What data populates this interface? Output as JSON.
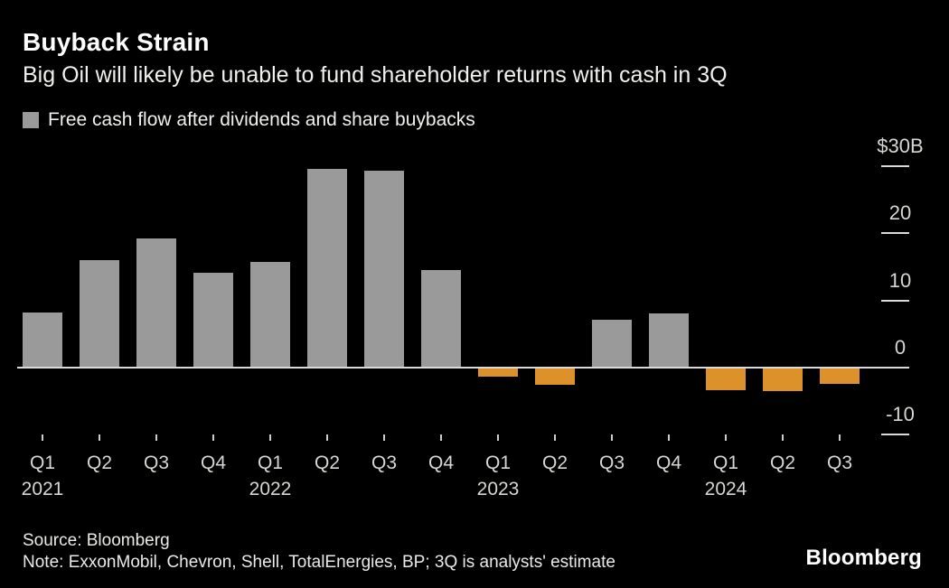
{
  "header": {
    "title": "Buyback Strain",
    "subtitle": "Big Oil will likely be unable to fund shareholder returns with cash in 3Q"
  },
  "legend": {
    "label": "Free cash flow after dividends and share buybacks",
    "swatch_color": "#9a9a9a"
  },
  "chart_data": {
    "type": "bar",
    "title": "Buyback Strain",
    "subtitle": "Big Oil will likely be unable to fund shareholder returns with cash in 3Q",
    "series_label": "Free cash flow after dividends and share buybacks",
    "unit": "billions USD",
    "categories": [
      "Q1 2021",
      "Q2 2021",
      "Q3 2021",
      "Q4 2021",
      "Q1 2022",
      "Q2 2022",
      "Q3 2022",
      "Q4 2022",
      "Q1 2023",
      "Q2 2023",
      "Q3 2023",
      "Q4 2023",
      "Q1 2024",
      "Q2 2024",
      "Q3 2024"
    ],
    "values": [
      8.2,
      16.0,
      19.2,
      14.1,
      15.8,
      29.6,
      29.4,
      14.6,
      -1.3,
      -2.6,
      7.1,
      8.1,
      -3.3,
      -3.5,
      -2.4
    ],
    "ylim": [
      -13,
      33
    ],
    "grid": false,
    "legend_position": "top-left",
    "y_axis": {
      "side": "right",
      "ticks": [
        {
          "label": "$30B",
          "value": 30
        },
        {
          "label": "20",
          "value": 20
        },
        {
          "label": "10",
          "value": 10
        },
        {
          "label": "0",
          "value": 0
        },
        {
          "label": "-10",
          "value": -10
        }
      ]
    },
    "x_axis": {
      "quarter_labels": [
        "Q1",
        "Q2",
        "Q3",
        "Q4",
        "Q1",
        "Q2",
        "Q3",
        "Q4",
        "Q1",
        "Q2",
        "Q3",
        "Q4",
        "Q1",
        "Q2",
        "Q3"
      ],
      "year_labels": [
        {
          "label": "2021",
          "index": 0
        },
        {
          "label": "2022",
          "index": 4
        },
        {
          "label": "2023",
          "index": 8
        },
        {
          "label": "2024",
          "index": 12
        }
      ]
    },
    "colors": {
      "positive": "#9a9a9a",
      "negative": "#dd912a",
      "axis_text": "#d8d6d2",
      "zero_line": "#dcdad6",
      "background": "#000000"
    }
  },
  "footer": {
    "source": "Source: Bloomberg",
    "note": "Note: ExxonMobil, Chevron, Shell, TotalEnergies, BP; 3Q is analysts' estimate",
    "logo": "Bloomberg"
  }
}
